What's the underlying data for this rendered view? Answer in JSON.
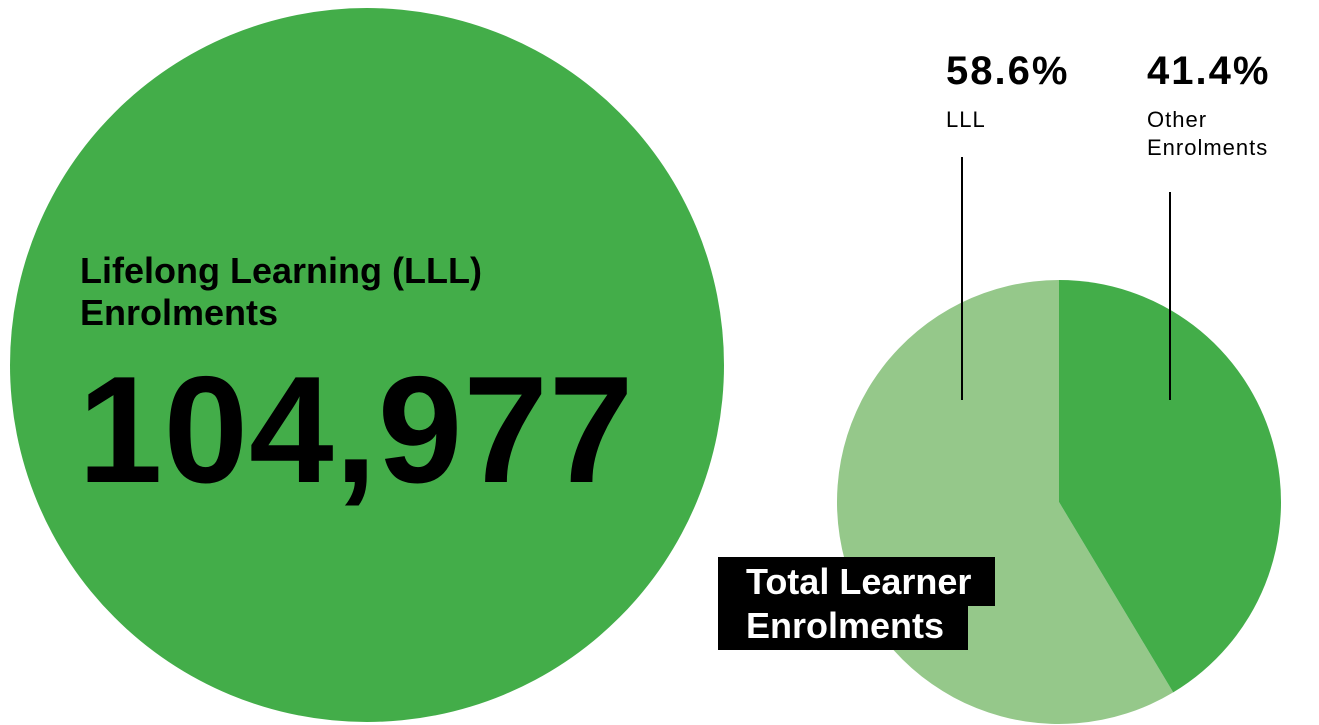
{
  "stat": {
    "label": "Lifelong Learning (LLL) Enrolments",
    "text": "104,977"
  },
  "chart_data": {
    "type": "pie",
    "title": "Total Learner Enrolments",
    "categories": [
      "LLL",
      "Other Enrolments"
    ],
    "values": [
      58.6,
      41.4
    ],
    "value_labels": [
      "58.6%",
      "41.4%"
    ],
    "colors": [
      "#95c88a",
      "#43ad49"
    ]
  }
}
